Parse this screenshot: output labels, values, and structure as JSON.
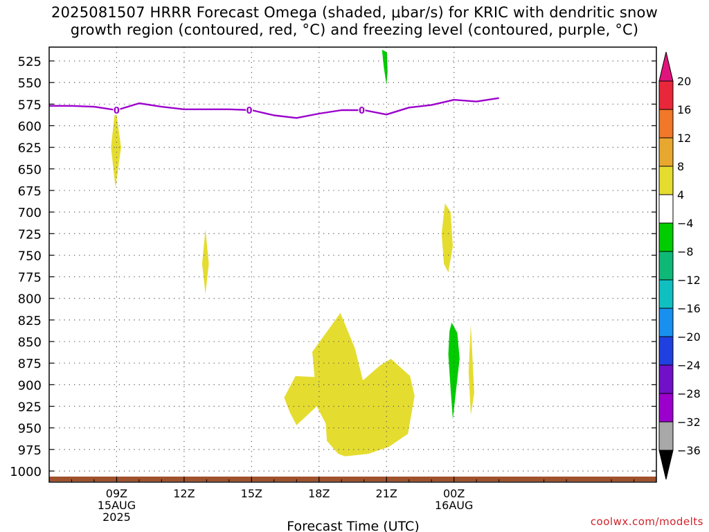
{
  "title": {
    "line1": "2025081507 HRRR Forecast Omega (shaded, μbar/s) for KRIC with dendritic snow",
    "line2": "growth region (contoured, red, °C) and freezing level (contoured, purple, °C)"
  },
  "credit": "coolwx.com/modelts",
  "chart_data": {
    "type": "heatmap",
    "xlabel": "Forecast Time (UTC)",
    "ylabel": "",
    "x_unit": "hours since 2025-08-15 06Z",
    "xlim": [
      0,
      27
    ],
    "y_unit": "hPa",
    "ylim": [
      1015,
      510
    ],
    "y_ticks": [
      525,
      550,
      575,
      600,
      625,
      650,
      675,
      700,
      725,
      750,
      775,
      800,
      825,
      850,
      875,
      900,
      925,
      950,
      975,
      1000
    ],
    "x_ticks": [
      {
        "x": 3,
        "labels": [
          "09Z",
          "15AUG",
          "2025"
        ]
      },
      {
        "x": 6,
        "labels": [
          "12Z"
        ]
      },
      {
        "x": 9,
        "labels": [
          "15Z"
        ]
      },
      {
        "x": 12,
        "labels": [
          "18Z"
        ]
      },
      {
        "x": 15,
        "labels": [
          "21Z"
        ]
      },
      {
        "x": 18,
        "labels": [
          "00Z",
          "16AUG"
        ]
      }
    ],
    "grid": true,
    "freezing_level": {
      "color": "#9b00cc",
      "label": "0",
      "label_x": [
        3,
        8.9,
        13.9
      ],
      "points": [
        [
          0,
          577
        ],
        [
          1,
          577
        ],
        [
          2,
          578
        ],
        [
          3,
          582
        ],
        [
          4,
          574
        ],
        [
          5,
          578
        ],
        [
          6,
          581
        ],
        [
          7,
          581
        ],
        [
          8,
          581
        ],
        [
          9,
          582
        ],
        [
          10,
          588
        ],
        [
          11,
          591
        ],
        [
          12,
          586
        ],
        [
          13,
          582
        ],
        [
          14,
          582
        ],
        [
          15,
          587
        ],
        [
          16,
          579
        ],
        [
          17,
          576
        ],
        [
          18,
          570
        ],
        [
          19,
          572
        ],
        [
          20,
          568
        ]
      ]
    },
    "ground_bar": {
      "color": "#a0522d"
    },
    "omega_regions": [
      {
        "category": "4 to 8",
        "color": "#e5dc30",
        "points": [
          [
            2.95,
            578
          ],
          [
            3.2,
            625
          ],
          [
            2.95,
            672
          ],
          [
            2.75,
            625
          ]
        ]
      },
      {
        "category": "4 to 8",
        "color": "#e5dc30",
        "points": [
          [
            6.95,
            720
          ],
          [
            7.1,
            760
          ],
          [
            6.95,
            795
          ],
          [
            6.8,
            760
          ]
        ]
      },
      {
        "category": "4 to 8",
        "color": "#e5dc30",
        "points": [
          [
            17.6,
            690
          ],
          [
            17.85,
            700
          ],
          [
            17.95,
            740
          ],
          [
            17.75,
            770
          ],
          [
            17.55,
            760
          ],
          [
            17.45,
            725
          ]
        ]
      },
      {
        "category": "4 to 8",
        "color": "#e5dc30",
        "points": [
          [
            11.7,
            862
          ],
          [
            12.95,
            817
          ],
          [
            13.6,
            858
          ],
          [
            13.95,
            895
          ],
          [
            14.7,
            878
          ],
          [
            15.2,
            870
          ],
          [
            16.05,
            890
          ],
          [
            16.25,
            913
          ],
          [
            15.95,
            957
          ],
          [
            15.1,
            972
          ],
          [
            14.2,
            980
          ],
          [
            13.15,
            983
          ],
          [
            12.85,
            980
          ],
          [
            12.35,
            965
          ],
          [
            12.3,
            945
          ],
          [
            11.9,
            925
          ],
          [
            11.0,
            947
          ],
          [
            10.7,
            932
          ],
          [
            10.45,
            915
          ],
          [
            10.95,
            890
          ],
          [
            11.8,
            891
          ]
        ]
      },
      {
        "category": "4 to 8",
        "color": "#e5dc30",
        "points": [
          [
            18.75,
            830
          ],
          [
            18.9,
            910
          ],
          [
            18.75,
            935
          ],
          [
            18.65,
            885
          ]
        ]
      },
      {
        "category": "-8 to -4",
        "color": "#00cc00",
        "points": [
          [
            14.8,
            512
          ],
          [
            15.02,
            515
          ],
          [
            15.05,
            537
          ],
          [
            15.0,
            553
          ],
          [
            14.88,
            532
          ]
        ]
      },
      {
        "category": "-8 to -4",
        "color": "#00cc00",
        "points": [
          [
            17.9,
            828
          ],
          [
            18.15,
            840
          ],
          [
            18.25,
            870
          ],
          [
            18.1,
            905
          ],
          [
            17.95,
            940
          ],
          [
            17.85,
            905
          ],
          [
            17.75,
            865
          ],
          [
            17.8,
            838
          ]
        ]
      }
    ],
    "colorbar": {
      "tick_labels": [
        "20",
        "16",
        "12",
        "8",
        "4",
        "−4",
        "−8",
        "−12",
        "−16",
        "−20",
        "−24",
        "−28",
        "−32",
        "−36"
      ],
      "colors": [
        "#e8283a",
        "#f07828",
        "#e8a830",
        "#e5dc30",
        "#ffffff",
        "#00cc00",
        "#10b878",
        "#10c0c0",
        "#1890f0",
        "#2040e0",
        "#7010c8",
        "#9b00cc",
        "#a8a8a8"
      ],
      "top_arrow_color": "#e0147c",
      "bottom_arrow_color": "#000000"
    }
  }
}
